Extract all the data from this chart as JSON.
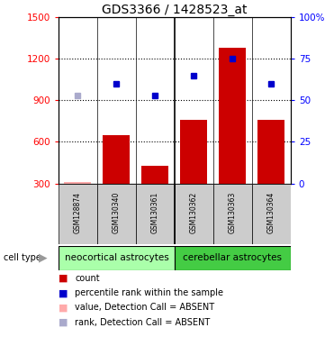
{
  "title": "GDS3366 / 1428523_at",
  "samples": [
    "GSM128874",
    "GSM130340",
    "GSM130361",
    "GSM130362",
    "GSM130363",
    "GSM130364"
  ],
  "bar_values": [
    310,
    650,
    430,
    760,
    1280,
    760
  ],
  "bar_absent": [
    true,
    false,
    false,
    false,
    false,
    false
  ],
  "percentile_values": [
    53,
    60,
    53,
    65,
    75,
    60
  ],
  "percentile_absent": [
    true,
    false,
    false,
    false,
    false,
    false
  ],
  "bar_color": "#cc0000",
  "bar_absent_color": "#ffaaaa",
  "dot_color": "#0000cc",
  "dot_absent_color": "#aaaacc",
  "ylim_left": [
    300,
    1500
  ],
  "ylim_right": [
    0,
    100
  ],
  "yticks_left": [
    300,
    600,
    900,
    1200,
    1500
  ],
  "yticks_right": [
    0,
    25,
    50,
    75,
    100
  ],
  "ytick_labels_right": [
    "0",
    "25",
    "50",
    "75",
    "100%"
  ],
  "grid_values": [
    600,
    900,
    1200
  ],
  "group1_label": "neocortical astrocytes",
  "group2_label": "cerebellar astrocytes",
  "group1_color": "#aaffaa",
  "group2_color": "#44cc44",
  "cell_type_label": "cell type",
  "legend_items": [
    {
      "label": "count",
      "color": "#cc0000"
    },
    {
      "label": "percentile rank within the sample",
      "color": "#0000cc"
    },
    {
      "label": "value, Detection Call = ABSENT",
      "color": "#ffaaaa"
    },
    {
      "label": "rank, Detection Call = ABSENT",
      "color": "#aaaacc"
    }
  ],
  "bg_color": "#ffffff",
  "title_fontsize": 10,
  "tick_fontsize": 7.5,
  "sample_fontsize": 5.5,
  "legend_fontsize": 7,
  "group_fontsize": 7.5
}
